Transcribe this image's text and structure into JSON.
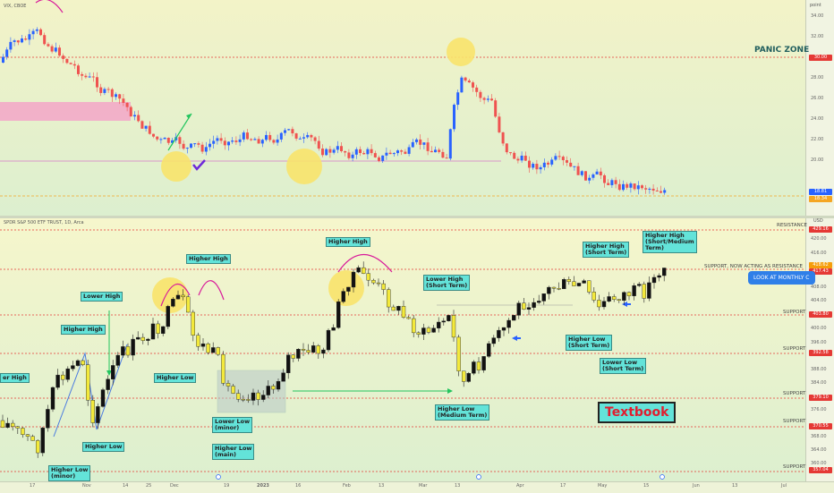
{
  "vix": {
    "title": "VIX, CBOE",
    "unit": "point",
    "panic_label": "PANIC ZONE",
    "axis_ticks": [
      "34.00",
      "32.00",
      "30.00",
      "28.00",
      "26.00",
      "24.00",
      "22.00",
      "20.00",
      "18.00"
    ],
    "badges": [
      {
        "text": "30.00",
        "color": "#e53935"
      },
      {
        "text": "18.81",
        "color": "#2962ff"
      },
      {
        "text": "18.34",
        "color": "#f5a623"
      }
    ],
    "colors": {
      "up": "#2962ff",
      "down": "#ef5350",
      "zone": "#f3a6c8",
      "highlight": "#f8e36b",
      "arrow": "#22c55e",
      "check": "#6d28d9"
    }
  },
  "spx": {
    "title": "SPDR S&P 500 ETF TRUST, 1D, Arca",
    "unit": "USD",
    "axis_ticks": [
      "420.00",
      "416.00",
      "412.00",
      "408.00",
      "404.00",
      "400.00",
      "396.00",
      "392.00",
      "388.00",
      "384.00",
      "380.00",
      "376.00",
      "372.00",
      "368.00",
      "364.00",
      "360.00"
    ],
    "badges": [
      {
        "text": "429.16",
        "color": "#e53935"
      },
      {
        "text": "418.62",
        "color": "#f59e0b"
      },
      {
        "text": "417.43",
        "color": "#e53935"
      },
      {
        "text": "403.80",
        "color": "#e53935"
      },
      {
        "text": "392.58",
        "color": "#e53935"
      },
      {
        "text": "379.10",
        "color": "#e53935"
      },
      {
        "text": "370.55",
        "color": "#e53935"
      },
      {
        "text": "357.04",
        "color": "#e53935"
      }
    ],
    "levels": [
      {
        "label": "RESISTANCE"
      },
      {
        "label": "SUPPORT, NOW ACTING AS RESISTANCE"
      },
      {
        "label": "SUPPORT"
      },
      {
        "label": "SUPPORT"
      },
      {
        "label": "SUPPORT"
      },
      {
        "label": "SUPPORT"
      },
      {
        "label": "SUPPORT"
      }
    ],
    "annotations": [
      "Higher High",
      "Lower High",
      "Higher High",
      "Higher High",
      "Higher Low",
      "Lower Low\n(minor)",
      "Higher Low\n(main)",
      "Higher Low",
      "Higher Low\n(minor)",
      "Lower High\n(Short Term)",
      "Higher Low\n(Medium Term)",
      "Higher High\n(Short Term)",
      "Higher High\n(Short/Medium\nTerm)",
      "Higher Low\n(Short Term)",
      "Lower Low\n(Short Term)",
      "er High"
    ],
    "textbook": "Textbook",
    "monthly": "LOOK AT MONTHLY C",
    "colors": {
      "up": "#111111",
      "down": "#f3e93b",
      "level": "#e53935",
      "arch": "#d81b9a",
      "trend": "#4a7be0"
    }
  },
  "time_axis": [
    "17",
    "Nov",
    "14",
    "25",
    "Dec",
    "19",
    "2023",
    "16",
    "Feb",
    "13",
    "Mar",
    "13",
    "Apr",
    "17",
    "May",
    "15",
    "Jun",
    "13",
    "Jul"
  ]
}
